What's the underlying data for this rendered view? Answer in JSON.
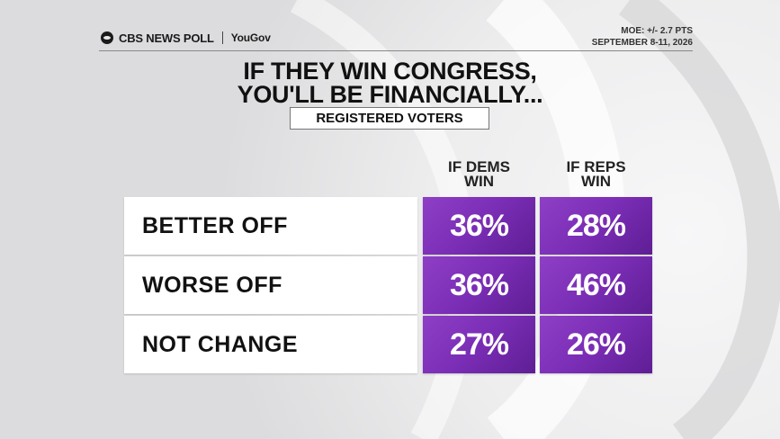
{
  "header": {
    "brand": "CBS NEWS POLL",
    "partner": "YouGov",
    "moe": "MOE: +/- 2.7 PTS",
    "dates": "SEPTEMBER 8-11, 2026"
  },
  "title_line1": "IF THEY WIN CONGRESS,",
  "title_line2": "YOU'LL BE FINANCIALLY...",
  "subtitle": "REGISTERED VOTERS",
  "chart_data": {
    "type": "table",
    "title": "IF THEY WIN CONGRESS, YOU'LL BE FINANCIALLY...",
    "subtitle": "REGISTERED VOTERS",
    "columns": [
      "IF DEMS WIN",
      "IF REPS WIN"
    ],
    "rows": [
      {
        "label": "BETTER OFF",
        "values": [
          "36%",
          "28%"
        ]
      },
      {
        "label": "WORSE OFF",
        "values": [
          "36%",
          "46%"
        ]
      },
      {
        "label": "NOT CHANGE",
        "values": [
          "27%",
          "26%"
        ]
      }
    ],
    "series": [
      {
        "name": "IF DEMS WIN",
        "values": [
          36,
          36,
          27
        ]
      },
      {
        "name": "IF REPS WIN",
        "values": [
          28,
          46,
          26
        ]
      }
    ],
    "categories": [
      "BETTER OFF",
      "WORSE OFF",
      "NOT CHANGE"
    ]
  },
  "colors": {
    "cell": "#7a2db5",
    "label_bg": "#ffffff",
    "text": "#111111"
  }
}
